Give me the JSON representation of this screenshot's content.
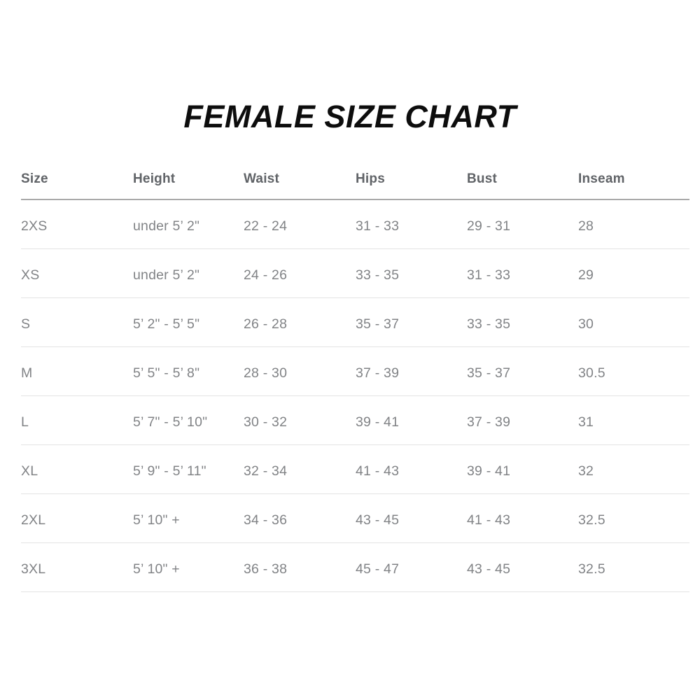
{
  "title": "FEMALE SIZE CHART",
  "chart_data": {
    "type": "table",
    "title": "FEMALE SIZE CHART",
    "columns": [
      "Size",
      "Height",
      "Waist",
      "Hips",
      "Bust",
      "Inseam"
    ],
    "rows": [
      [
        "2XS",
        "under 5’ 2\"",
        "22 - 24",
        "31 - 33",
        "29 - 31",
        "28"
      ],
      [
        "XS",
        "under 5’ 2\"",
        "24 - 26",
        "33 - 35",
        "31 - 33",
        "29"
      ],
      [
        "S",
        "5’ 2\" - 5’ 5\"",
        "26 - 28",
        "35 - 37",
        "33 - 35",
        "30"
      ],
      [
        "M",
        "5’ 5\" - 5’ 8\"",
        "28 - 30",
        "37 - 39",
        "35 - 37",
        "30.5"
      ],
      [
        "L",
        "5’ 7\" - 5’ 10\"",
        "30 - 32",
        "39 - 41",
        "37 - 39",
        "31"
      ],
      [
        "XL",
        "5’ 9\" - 5’ 11\"",
        "32 - 34",
        "41 - 43",
        "39 - 41",
        "32"
      ],
      [
        "2XL",
        "5’ 10\" +",
        "34 - 36",
        "43 - 45",
        "41 - 43",
        "32.5"
      ],
      [
        "3XL",
        "5’ 10\" +",
        "36 - 38",
        "45 - 47",
        "43 - 45",
        "32.5"
      ]
    ],
    "layout": {
      "legend": "none",
      "grid": "horizontal-row-dividers",
      "column_alignment": "left"
    }
  },
  "colors": {
    "background": "#ffffff",
    "title_text": "#0d0d0d",
    "header_text": "#606367",
    "body_text": "#818386",
    "header_rule": "#a9a9a9",
    "row_rule": "#e3e3e3"
  }
}
